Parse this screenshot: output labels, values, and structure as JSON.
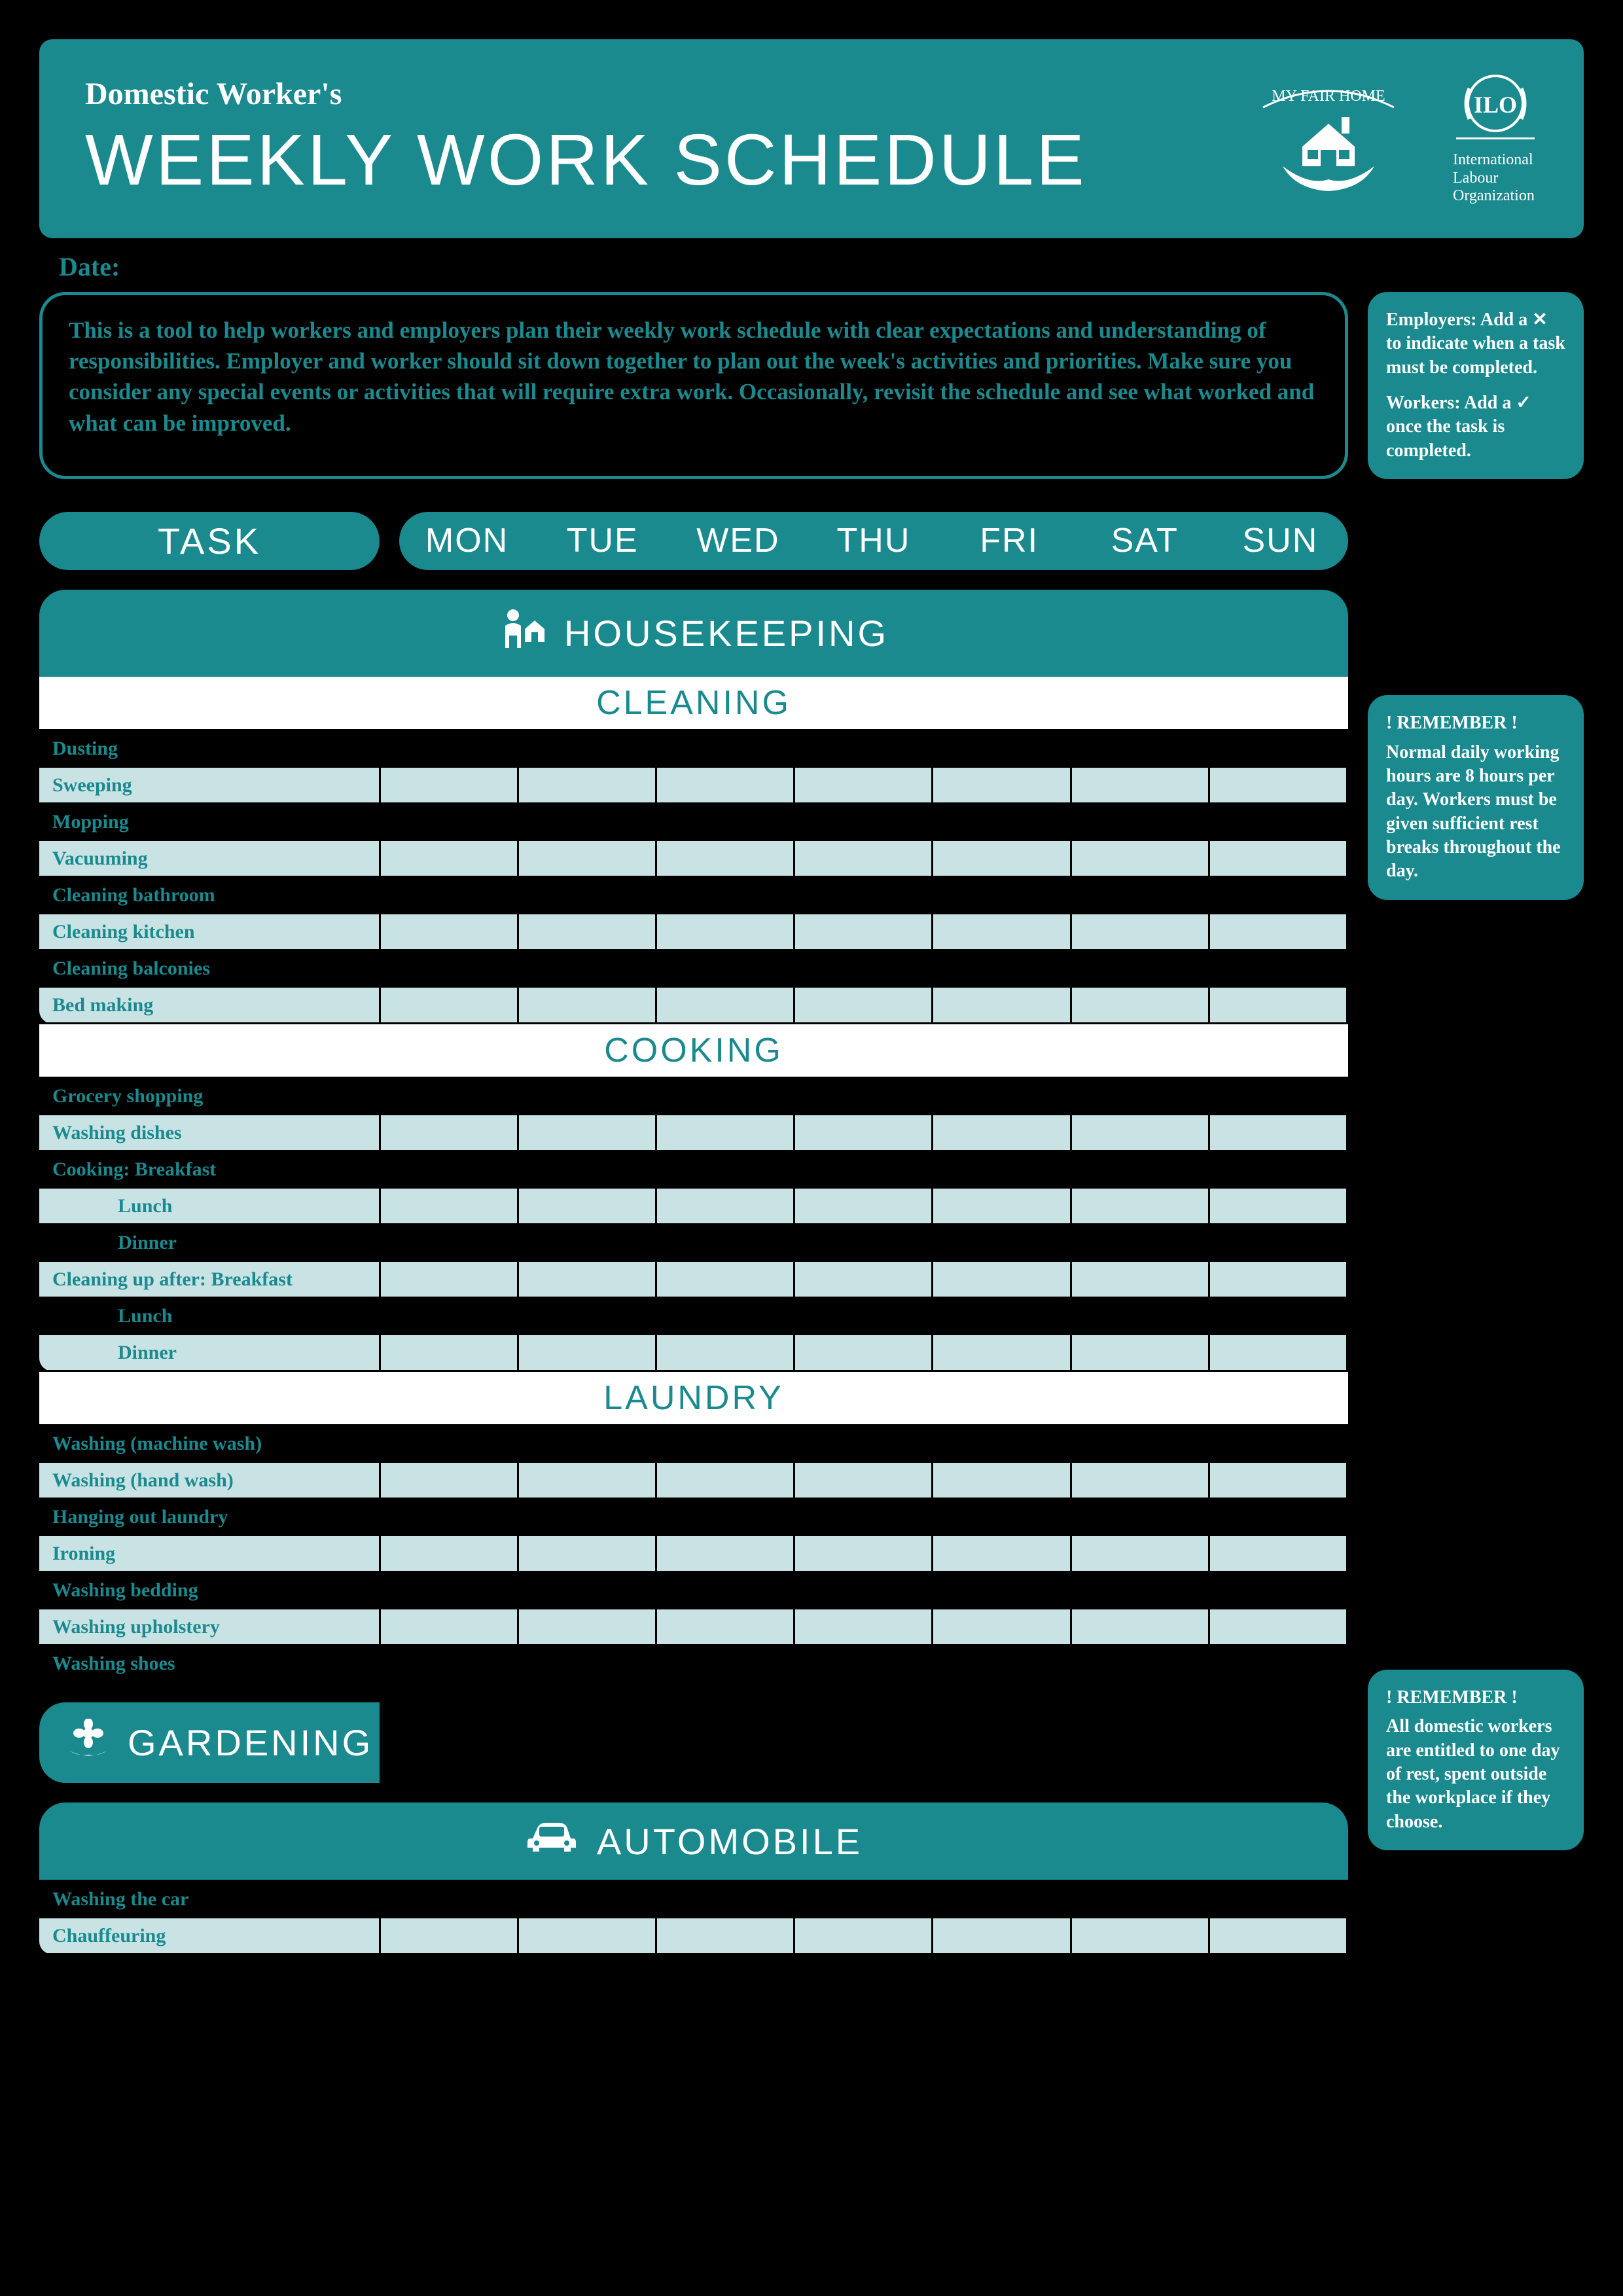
{
  "colors": {
    "teal": "#1a8a8f",
    "light": "#c9e3e4",
    "black": "#000000",
    "white": "#ffffff"
  },
  "header": {
    "subtitle": "Domestic Worker's",
    "title": "WEEKLY WORK SCHEDULE",
    "logo1_text": "MY FAIR HOME",
    "logo2_line1": "International",
    "logo2_line2": "Labour",
    "logo2_line3": "Organization"
  },
  "date_label": "Date:",
  "intro": "This is a tool to help workers and employers plan their weekly work schedule with clear expectations and understanding of responsibilities. Employer and worker should sit down together to plan out the week's activities and priorities. Make sure you consider any special events or activities that will require extra work. Occasionally, revisit the schedule and see what worked and what can be improved.",
  "legend": {
    "line1": "Employers: Add a ✕ to indicate when a task must be completed.",
    "line2": "Workers: Add a ✓ once the task is completed."
  },
  "table_header": {
    "task": "TASK",
    "days": [
      "MON",
      "TUE",
      "WED",
      "THU",
      "FRI",
      "SAT",
      "SUN"
    ]
  },
  "categories": {
    "housekeeping": {
      "label": "HOUSEKEEPING",
      "sections": [
        {
          "title": "CLEANING",
          "rows": [
            "Dusting",
            "Sweeping",
            "Mopping",
            "Vacuuming",
            "Cleaning bathroom",
            "Cleaning kitchen",
            "Cleaning balconies",
            "Bed making"
          ]
        },
        {
          "title": "COOKING",
          "rows": [
            "Grocery shopping",
            "Washing dishes",
            "Cooking: Breakfast",
            "Lunch",
            "Dinner",
            "Cleaning up after: Breakfast",
            "Lunch",
            "Dinner"
          ],
          "indent": [
            3,
            4,
            6,
            7
          ]
        },
        {
          "title": "LAUNDRY",
          "rows": [
            "Washing (machine wash)",
            "Washing (hand wash)",
            "Hanging out laundry",
            "Ironing",
            "Washing bedding",
            "Washing upholstery",
            "Washing shoes"
          ]
        }
      ]
    },
    "gardening": {
      "label": "GARDENING"
    },
    "automobile": {
      "label": "AUTOMOBILE",
      "rows": [
        "Washing the car",
        "Chauffeuring"
      ]
    }
  },
  "remember1": {
    "title": "! REMEMBER !",
    "body": "Normal daily working hours are 8 hours per day. Workers must be given sufficient rest breaks throughout the day."
  },
  "remember2": {
    "title": "! REMEMBER !",
    "body": "All domestic workers are entitled to one day of rest, spent outside the workplace if they choose."
  }
}
